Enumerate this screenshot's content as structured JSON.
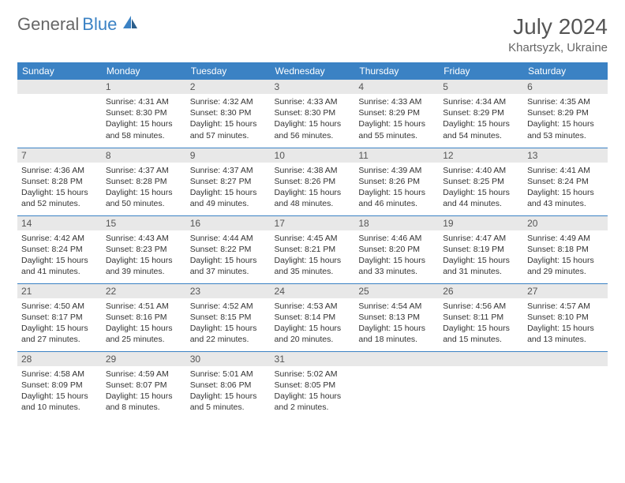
{
  "brand": {
    "part1": "General",
    "part2": "Blue"
  },
  "title": "July 2024",
  "location": "Khartsyzk, Ukraine",
  "colors": {
    "accent": "#3b82c4",
    "header_bg": "#3b82c4",
    "header_text": "#ffffff",
    "daynum_bg": "#e8e8e8",
    "text": "#333333",
    "row_border": "#3b82c4"
  },
  "daysOfWeek": [
    "Sunday",
    "Monday",
    "Tuesday",
    "Wednesday",
    "Thursday",
    "Friday",
    "Saturday"
  ],
  "weeks": [
    [
      {
        "num": "",
        "lines": []
      },
      {
        "num": "1",
        "lines": [
          "Sunrise: 4:31 AM",
          "Sunset: 8:30 PM",
          "Daylight: 15 hours",
          "and 58 minutes."
        ]
      },
      {
        "num": "2",
        "lines": [
          "Sunrise: 4:32 AM",
          "Sunset: 8:30 PM",
          "Daylight: 15 hours",
          "and 57 minutes."
        ]
      },
      {
        "num": "3",
        "lines": [
          "Sunrise: 4:33 AM",
          "Sunset: 8:30 PM",
          "Daylight: 15 hours",
          "and 56 minutes."
        ]
      },
      {
        "num": "4",
        "lines": [
          "Sunrise: 4:33 AM",
          "Sunset: 8:29 PM",
          "Daylight: 15 hours",
          "and 55 minutes."
        ]
      },
      {
        "num": "5",
        "lines": [
          "Sunrise: 4:34 AM",
          "Sunset: 8:29 PM",
          "Daylight: 15 hours",
          "and 54 minutes."
        ]
      },
      {
        "num": "6",
        "lines": [
          "Sunrise: 4:35 AM",
          "Sunset: 8:29 PM",
          "Daylight: 15 hours",
          "and 53 minutes."
        ]
      }
    ],
    [
      {
        "num": "7",
        "lines": [
          "Sunrise: 4:36 AM",
          "Sunset: 8:28 PM",
          "Daylight: 15 hours",
          "and 52 minutes."
        ]
      },
      {
        "num": "8",
        "lines": [
          "Sunrise: 4:37 AM",
          "Sunset: 8:28 PM",
          "Daylight: 15 hours",
          "and 50 minutes."
        ]
      },
      {
        "num": "9",
        "lines": [
          "Sunrise: 4:37 AM",
          "Sunset: 8:27 PM",
          "Daylight: 15 hours",
          "and 49 minutes."
        ]
      },
      {
        "num": "10",
        "lines": [
          "Sunrise: 4:38 AM",
          "Sunset: 8:26 PM",
          "Daylight: 15 hours",
          "and 48 minutes."
        ]
      },
      {
        "num": "11",
        "lines": [
          "Sunrise: 4:39 AM",
          "Sunset: 8:26 PM",
          "Daylight: 15 hours",
          "and 46 minutes."
        ]
      },
      {
        "num": "12",
        "lines": [
          "Sunrise: 4:40 AM",
          "Sunset: 8:25 PM",
          "Daylight: 15 hours",
          "and 44 minutes."
        ]
      },
      {
        "num": "13",
        "lines": [
          "Sunrise: 4:41 AM",
          "Sunset: 8:24 PM",
          "Daylight: 15 hours",
          "and 43 minutes."
        ]
      }
    ],
    [
      {
        "num": "14",
        "lines": [
          "Sunrise: 4:42 AM",
          "Sunset: 8:24 PM",
          "Daylight: 15 hours",
          "and 41 minutes."
        ]
      },
      {
        "num": "15",
        "lines": [
          "Sunrise: 4:43 AM",
          "Sunset: 8:23 PM",
          "Daylight: 15 hours",
          "and 39 minutes."
        ]
      },
      {
        "num": "16",
        "lines": [
          "Sunrise: 4:44 AM",
          "Sunset: 8:22 PM",
          "Daylight: 15 hours",
          "and 37 minutes."
        ]
      },
      {
        "num": "17",
        "lines": [
          "Sunrise: 4:45 AM",
          "Sunset: 8:21 PM",
          "Daylight: 15 hours",
          "and 35 minutes."
        ]
      },
      {
        "num": "18",
        "lines": [
          "Sunrise: 4:46 AM",
          "Sunset: 8:20 PM",
          "Daylight: 15 hours",
          "and 33 minutes."
        ]
      },
      {
        "num": "19",
        "lines": [
          "Sunrise: 4:47 AM",
          "Sunset: 8:19 PM",
          "Daylight: 15 hours",
          "and 31 minutes."
        ]
      },
      {
        "num": "20",
        "lines": [
          "Sunrise: 4:49 AM",
          "Sunset: 8:18 PM",
          "Daylight: 15 hours",
          "and 29 minutes."
        ]
      }
    ],
    [
      {
        "num": "21",
        "lines": [
          "Sunrise: 4:50 AM",
          "Sunset: 8:17 PM",
          "Daylight: 15 hours",
          "and 27 minutes."
        ]
      },
      {
        "num": "22",
        "lines": [
          "Sunrise: 4:51 AM",
          "Sunset: 8:16 PM",
          "Daylight: 15 hours",
          "and 25 minutes."
        ]
      },
      {
        "num": "23",
        "lines": [
          "Sunrise: 4:52 AM",
          "Sunset: 8:15 PM",
          "Daylight: 15 hours",
          "and 22 minutes."
        ]
      },
      {
        "num": "24",
        "lines": [
          "Sunrise: 4:53 AM",
          "Sunset: 8:14 PM",
          "Daylight: 15 hours",
          "and 20 minutes."
        ]
      },
      {
        "num": "25",
        "lines": [
          "Sunrise: 4:54 AM",
          "Sunset: 8:13 PM",
          "Daylight: 15 hours",
          "and 18 minutes."
        ]
      },
      {
        "num": "26",
        "lines": [
          "Sunrise: 4:56 AM",
          "Sunset: 8:11 PM",
          "Daylight: 15 hours",
          "and 15 minutes."
        ]
      },
      {
        "num": "27",
        "lines": [
          "Sunrise: 4:57 AM",
          "Sunset: 8:10 PM",
          "Daylight: 15 hours",
          "and 13 minutes."
        ]
      }
    ],
    [
      {
        "num": "28",
        "lines": [
          "Sunrise: 4:58 AM",
          "Sunset: 8:09 PM",
          "Daylight: 15 hours",
          "and 10 minutes."
        ]
      },
      {
        "num": "29",
        "lines": [
          "Sunrise: 4:59 AM",
          "Sunset: 8:07 PM",
          "Daylight: 15 hours",
          "and 8 minutes."
        ]
      },
      {
        "num": "30",
        "lines": [
          "Sunrise: 5:01 AM",
          "Sunset: 8:06 PM",
          "Daylight: 15 hours",
          "and 5 minutes."
        ]
      },
      {
        "num": "31",
        "lines": [
          "Sunrise: 5:02 AM",
          "Sunset: 8:05 PM",
          "Daylight: 15 hours",
          "and 2 minutes."
        ]
      },
      {
        "num": "",
        "lines": []
      },
      {
        "num": "",
        "lines": []
      },
      {
        "num": "",
        "lines": []
      }
    ]
  ]
}
